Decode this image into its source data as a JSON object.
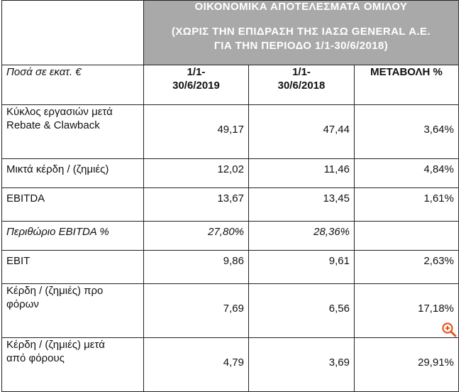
{
  "banner": {
    "title": "ΟΙΚΟΝΟΜΙΚΑ ΑΠΟΤΕΛΕΣΜΑΤΑ ΟΜΙΛΟΥ",
    "subtitle_line1": "(ΧΩΡΙΣ ΤΗΝ ΕΠΙΔΡΑΣΗ ΤΗΣ ΙΑΣΩ GENERAL Α.Ε.",
    "subtitle_line2": "ΓΙΑ ΤΗΝ ΠΕΡΙΟΔΟ 1/1-30/6/2018)"
  },
  "header": {
    "label": "Ποσά σε εκατ. €",
    "period_2019_line1": "1/1-",
    "period_2019_line2": "30/6/2019",
    "period_2018_line1": "1/1-",
    "period_2018_line2": "30/6/2018",
    "change": "ΜΕΤΑΒΟΛΗ %"
  },
  "rows": [
    {
      "label_line1": "Κύκλος εργασιών μετά",
      "label_line2": "Rebate & Clawback",
      "v2019": "49,17",
      "v2018": "47,44",
      "change": "3,64%"
    },
    {
      "label_line1": "Μικτά κέρδη / (ζημιές)",
      "label_line2": "",
      "v2019": "12,02",
      "v2018": "11,46",
      "change": "4,84%"
    },
    {
      "label_line1": "EBITDA",
      "label_line2": "",
      "v2019": "13,67",
      "v2018": "13,45",
      "change": "1,61%"
    },
    {
      "label_line1": "Περιθώριο EBITDA %",
      "label_line2": "",
      "v2019": "27,80%",
      "v2018": "28,36%",
      "change": ""
    },
    {
      "label_line1": "EBIT",
      "label_line2": "",
      "v2019": "9,86",
      "v2018": "9,61",
      "change": "2,63%"
    },
    {
      "label_line1": "Κέρδη / (ζημιές) προ",
      "label_line2": "φόρων",
      "v2019": "7,69",
      "v2018": "6,56",
      "change": "17,18%"
    },
    {
      "label_line1": "Κέρδη / (ζημιές) μετά",
      "label_line2": "από φόρους",
      "v2019": "4,79",
      "v2018": "3,69",
      "change": "29,91%"
    }
  ],
  "icons": {
    "zoom": "zoom-in-icon",
    "zoom_color": "#e8541e"
  }
}
